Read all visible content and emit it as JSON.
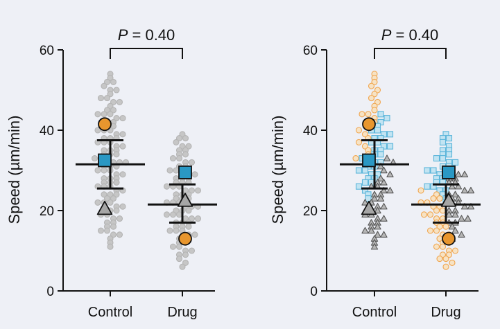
{
  "chart_data": [
    {
      "type": "scatter",
      "style": "superplot-grey",
      "categories": [
        "Control",
        "Drug"
      ],
      "ylabel": "Speed (µm/min)",
      "ylim": [
        0,
        60
      ],
      "yticks": [
        0,
        20,
        40,
        60
      ],
      "annotation": {
        "label": "P",
        "text": " = 0.40"
      },
      "summary": [
        {
          "category": "Control",
          "mean": 31.5,
          "sd_low": 25.5,
          "sd_high": 37.5
        },
        {
          "category": "Drug",
          "mean": 21.5,
          "sd_low": 17.0,
          "sd_high": 26.5
        }
      ],
      "replicate_means": [
        {
          "marker": "circle",
          "color": "#e8962e",
          "values": [
            41.5,
            13.0
          ]
        },
        {
          "marker": "square",
          "color": "#2a98c4",
          "values": [
            32.5,
            29.5
          ]
        },
        {
          "marker": "triangle",
          "color": "#a6a6a6",
          "values": [
            20.5,
            22.5
          ]
        }
      ],
      "points": [
        {
          "category": "Control",
          "color": "#c6c6c6",
          "edge": "#b4b4b4",
          "marker": "circle",
          "values": [
            54,
            53,
            52,
            52,
            51,
            50,
            50,
            49,
            48,
            48,
            47,
            47,
            46,
            45,
            45,
            44,
            44,
            44,
            43,
            43,
            42,
            42,
            41,
            41,
            40,
            40,
            40,
            39,
            39,
            38,
            38,
            38,
            37,
            37,
            37,
            36,
            36,
            35,
            35,
            35,
            34,
            34,
            34,
            33,
            33,
            33,
            32,
            32,
            32,
            31,
            31,
            31,
            30,
            30,
            30,
            29,
            29,
            28,
            28,
            28,
            27,
            27,
            27,
            26,
            26,
            26,
            25,
            25,
            24,
            24,
            24,
            23,
            23,
            22,
            22,
            22,
            21,
            21,
            20,
            20,
            20,
            19,
            19,
            18,
            18,
            17,
            17,
            16,
            16,
            15,
            15,
            14,
            14,
            13,
            12,
            11
          ]
        },
        {
          "category": "Drug",
          "color": "#c6c6c6",
          "edge": "#b4b4b4",
          "marker": "circle",
          "values": [
            39,
            38,
            38,
            37,
            36,
            36,
            35,
            35,
            34,
            34,
            33,
            33,
            32,
            32,
            31,
            31,
            30,
            30,
            29,
            29,
            29,
            28,
            28,
            28,
            27,
            27,
            27,
            26,
            26,
            26,
            25,
            25,
            25,
            24,
            24,
            24,
            23,
            23,
            23,
            22,
            22,
            22,
            21,
            21,
            21,
            20,
            20,
            20,
            19,
            19,
            19,
            18,
            18,
            18,
            17,
            17,
            17,
            16,
            16,
            16,
            15,
            15,
            15,
            14,
            14,
            13,
            13,
            12,
            12,
            11,
            11,
            10,
            10,
            9,
            9,
            8,
            7,
            6
          ]
        }
      ]
    },
    {
      "type": "scatter",
      "style": "superplot-color",
      "categories": [
        "Control",
        "Drug"
      ],
      "ylabel": "Speed (µm/min)",
      "ylim": [
        0,
        60
      ],
      "yticks": [
        0,
        20,
        40,
        60
      ],
      "annotation": {
        "label": "P",
        "text": " = 0.40"
      },
      "summary": [
        {
          "category": "Control",
          "mean": 31.5,
          "sd_low": 25.5,
          "sd_high": 37.5
        },
        {
          "category": "Drug",
          "mean": 21.5,
          "sd_low": 17.0,
          "sd_high": 26.5
        }
      ],
      "replicate_means": [
        {
          "marker": "circle",
          "color": "#e8962e",
          "values": [
            41.5,
            13.0
          ]
        },
        {
          "marker": "square",
          "color": "#2a98c4",
          "values": [
            32.5,
            29.5
          ]
        },
        {
          "marker": "triangle",
          "color": "#a6a6a6",
          "values": [
            20.5,
            22.5
          ]
        }
      ],
      "points": [
        {
          "category": "Control",
          "marker": "circle",
          "color": "#f7e3c4",
          "edge": "#f0a650",
          "values": [
            54,
            53,
            52,
            51,
            50,
            49,
            48,
            47,
            46,
            45,
            44,
            44,
            43,
            42,
            42,
            41,
            40,
            39,
            38,
            37,
            36,
            35,
            34,
            33
          ]
        },
        {
          "category": "Control",
          "marker": "square",
          "color": "#c2e4f2",
          "edge": "#5cb5da",
          "values": [
            44,
            43,
            42,
            41,
            40,
            40,
            39,
            39,
            38,
            38,
            37,
            37,
            36,
            36,
            35,
            35,
            34,
            34,
            33,
            33,
            32,
            32,
            31,
            31,
            30,
            30,
            29,
            29,
            28,
            28,
            27,
            27,
            26,
            25,
            24,
            23
          ]
        },
        {
          "category": "Control",
          "marker": "triangle",
          "color": "#b6b6b6",
          "edge": "#555555",
          "values": [
            33,
            32,
            31,
            30,
            29,
            28,
            27,
            27,
            26,
            26,
            25,
            25,
            24,
            24,
            23,
            23,
            22,
            22,
            21,
            21,
            20,
            20,
            19,
            19,
            18,
            18,
            17,
            17,
            16,
            16,
            15,
            15,
            14,
            14,
            13,
            12,
            11
          ]
        },
        {
          "category": "Drug",
          "marker": "circle",
          "color": "#f7e3c4",
          "edge": "#f0a650",
          "values": [
            25,
            24,
            23,
            23,
            22,
            22,
            21,
            21,
            20,
            20,
            19,
            19,
            18,
            18,
            17,
            17,
            16,
            16,
            15,
            15,
            14,
            14,
            13,
            13,
            12,
            12,
            11,
            11,
            10,
            10,
            9,
            9,
            8,
            8,
            7,
            6
          ]
        },
        {
          "category": "Drug",
          "marker": "square",
          "color": "#c2e4f2",
          "edge": "#5cb5da",
          "values": [
            39,
            38,
            38,
            37,
            36,
            35,
            35,
            34,
            34,
            33,
            33,
            32,
            32,
            31,
            31,
            30,
            30,
            29,
            29,
            28,
            28,
            27,
            27,
            26,
            26,
            25,
            25,
            24,
            23,
            22
          ]
        },
        {
          "category": "Drug",
          "marker": "triangle",
          "color": "#b6b6b6",
          "edge": "#555555",
          "values": [
            30,
            29,
            29,
            28,
            28,
            27,
            27,
            26,
            26,
            25,
            25,
            24,
            24,
            23,
            23,
            22,
            22,
            21,
            21,
            20,
            20,
            19,
            19,
            18,
            18,
            17,
            17,
            16,
            15,
            14,
            13
          ]
        }
      ]
    }
  ]
}
